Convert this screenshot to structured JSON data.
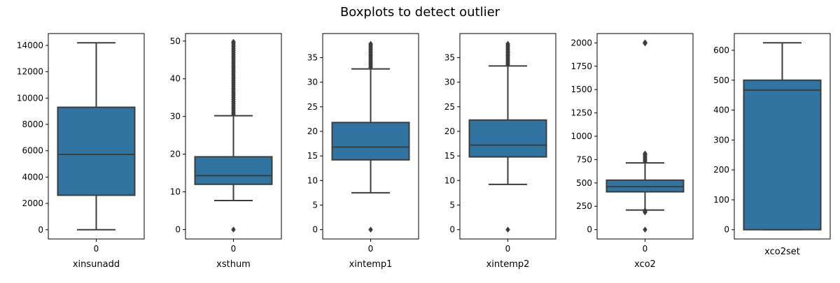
{
  "chart_data": {
    "title": "Boxplots to detect outlier",
    "box_color": "#3274a1",
    "line_color": "#3d3d3d",
    "panels": [
      {
        "type": "box",
        "xlabel": "xinsunadd",
        "category_label": "0",
        "ylim": [
          -700,
          14900
        ],
        "yticks": [
          0,
          2000,
          4000,
          6000,
          8000,
          10000,
          12000,
          14000
        ],
        "yticklabels": [
          "0",
          "2000",
          "4000",
          "6000",
          "8000",
          "10000",
          "12000",
          "14000"
        ],
        "min": 0,
        "q1": 2620,
        "median": 5720,
        "q3": 9300,
        "max": 14200,
        "outliers": []
      },
      {
        "type": "box",
        "xlabel": "xsthum",
        "category_label": "0",
        "ylim": [
          -2.5,
          52
        ],
        "yticks": [
          0,
          10,
          20,
          30,
          40,
          50
        ],
        "yticklabels": [
          "0",
          "10",
          "20",
          "30",
          "40",
          "50"
        ],
        "min": 7.7,
        "q1": 12.0,
        "median": 14.3,
        "q3": 19.3,
        "max": 30.2,
        "outliers": [
          0,
          30.6,
          31.0,
          31.5,
          32,
          32.5,
          33,
          33.5,
          34,
          34.5,
          35,
          35.5,
          36,
          36.5,
          37,
          37.5,
          38,
          38.5,
          39,
          39.5,
          40,
          40.5,
          41,
          41.5,
          42,
          42.5,
          43,
          43.5,
          44,
          44.5,
          45,
          45.5,
          46,
          46.5,
          47,
          47.5,
          48,
          48.5,
          49,
          49.5,
          49.8
        ]
      },
      {
        "type": "box",
        "xlabel": "xintemp1",
        "category_label": "0",
        "ylim": [
          -1.9,
          39.9
        ],
        "yticks": [
          0,
          5,
          10,
          15,
          20,
          25,
          30,
          35
        ],
        "yticklabels": [
          "0",
          "5",
          "10",
          "15",
          "20",
          "25",
          "30",
          "35"
        ],
        "min": 7.5,
        "q1": 14.2,
        "median": 16.8,
        "q3": 21.8,
        "max": 32.7,
        "outliers": [
          0,
          33.0,
          33.3,
          33.6,
          33.9,
          34.2,
          34.5,
          34.8,
          35.1,
          35.4,
          35.7,
          36.0,
          36.3,
          36.6,
          36.9,
          37.2,
          37.5,
          37.8
        ]
      },
      {
        "type": "box",
        "xlabel": "xintemp2",
        "category_label": "0",
        "ylim": [
          -1.9,
          39.9
        ],
        "yticks": [
          0,
          5,
          10,
          15,
          20,
          25,
          30,
          35
        ],
        "yticklabels": [
          "0",
          "5",
          "10",
          "15",
          "20",
          "25",
          "30",
          "35"
        ],
        "min": 9.2,
        "q1": 14.8,
        "median": 17.2,
        "q3": 22.3,
        "max": 33.3,
        "outliers": [
          0,
          33.6,
          33.9,
          34.2,
          34.5,
          34.8,
          35.1,
          35.4,
          35.7,
          36.0,
          36.3,
          36.6,
          36.9,
          37.2,
          37.5,
          37.8
        ]
      },
      {
        "type": "box",
        "xlabel": "xco2",
        "category_label": "0",
        "ylim": [
          -100,
          2100
        ],
        "yticks": [
          0,
          250,
          500,
          750,
          1000,
          1250,
          1500,
          1750,
          2000
        ],
        "yticklabels": [
          "0",
          "250",
          "500",
          "750",
          "1000",
          "1250",
          "1500",
          "1750",
          "2000"
        ],
        "min": 210,
        "q1": 405,
        "median": 460,
        "q3": 530,
        "max": 715,
        "outliers": [
          0,
          185,
          195,
          205,
          730,
          745,
          760,
          775,
          790,
          805,
          815,
          1995,
          2000,
          2005
        ]
      },
      {
        "type": "box",
        "xlabel": "xco2set",
        "category_label": "",
        "ylim": [
          -31,
          656
        ],
        "yticks": [
          0,
          100,
          200,
          300,
          400,
          500,
          600
        ],
        "yticklabels": [
          "0",
          "100",
          "200",
          "300",
          "400",
          "500",
          "600"
        ],
        "min": 0,
        "q1": 0,
        "median": 467,
        "q3": 500,
        "max": 625,
        "outliers": []
      }
    ]
  }
}
